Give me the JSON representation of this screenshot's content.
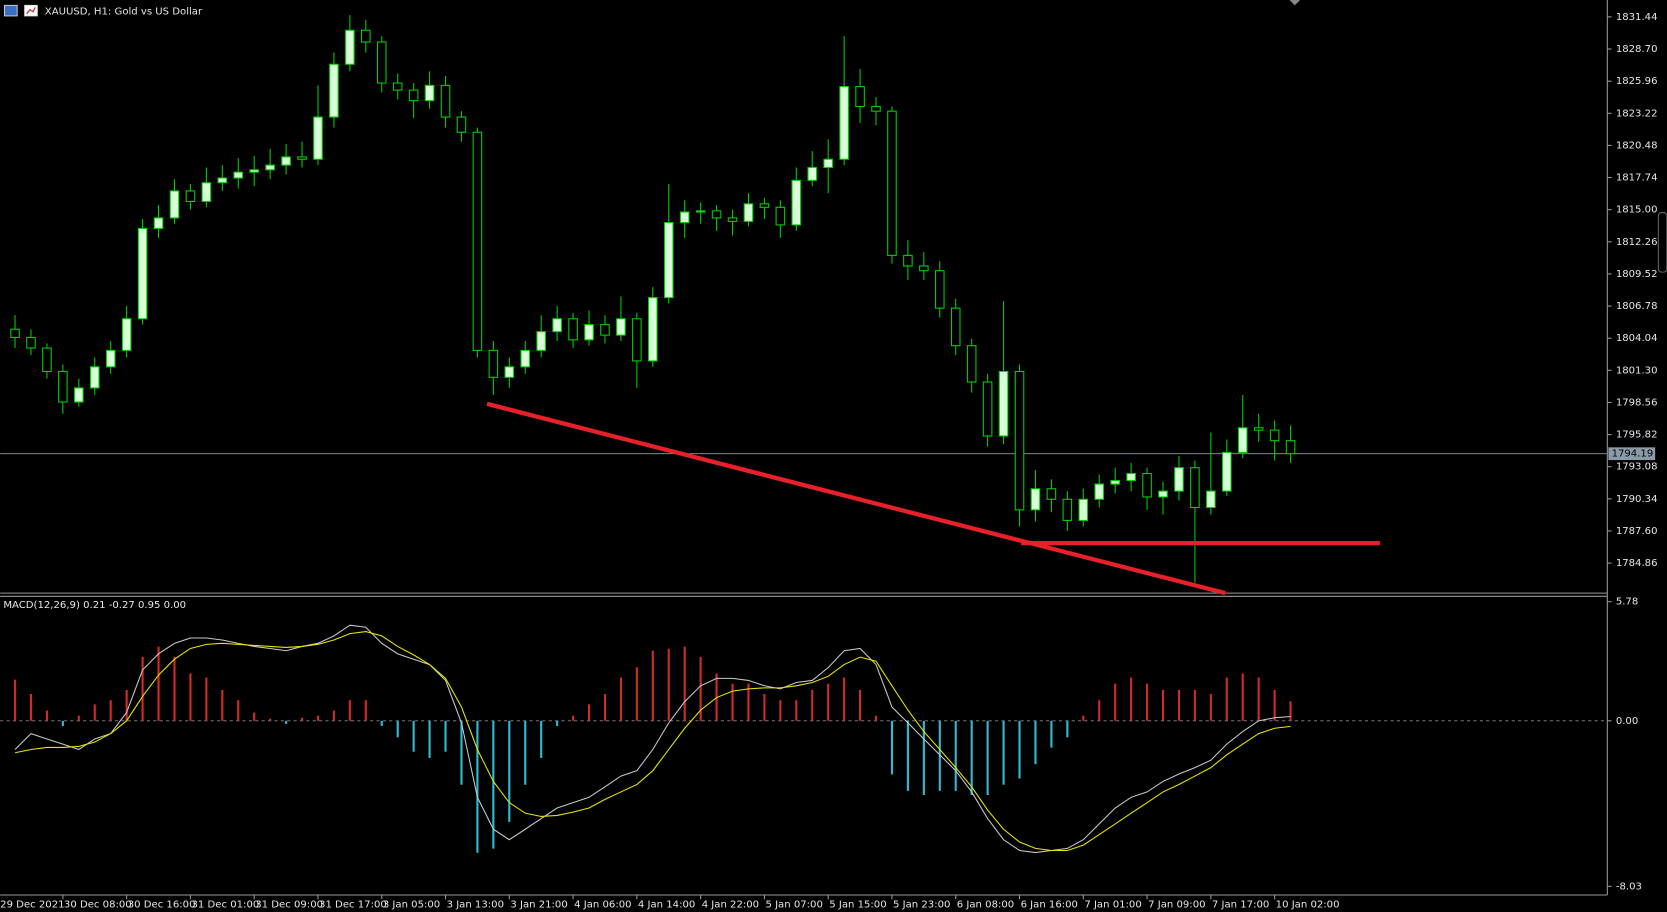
{
  "chart_data": [
    {
      "type": "candlestick",
      "title": "XAUUSD, H1:  Gold vs US Dollar",
      "categories": [
        "29 Dec 2021",
        null,
        null,
        null,
        "30 Dec 08:00",
        null,
        null,
        null,
        "30 Dec 16:00",
        null,
        null,
        null,
        "31 Dec 01:00",
        null,
        null,
        null,
        "31 Dec 09:00",
        null,
        null,
        null,
        "31 Dec 17:00",
        null,
        null,
        null,
        "3 Jan 05:00",
        null,
        null,
        null,
        "3 Jan 13:00",
        null,
        null,
        null,
        "3 Jan 21:00",
        null,
        null,
        null,
        "4 Jan 06:00",
        null,
        null,
        null,
        "4 Jan 14:00",
        null,
        null,
        null,
        "4 Jan 22:00",
        null,
        null,
        null,
        "5 Jan 07:00",
        null,
        null,
        null,
        "5 Jan 15:00",
        null,
        null,
        null,
        "5 Jan 23:00",
        null,
        null,
        null,
        "6 Jan 08:00",
        null,
        null,
        null,
        "6 Jan 16:00",
        null,
        null,
        null,
        "7 Jan 01:00",
        null,
        null,
        null,
        "7 Jan 09:00",
        null,
        null,
        null,
        "7 Jan 17:00",
        null,
        null,
        null,
        "10 Jan 02:00"
      ],
      "candles": [
        [
          1804.8,
          1806.0,
          1803.2,
          1804.1
        ],
        [
          1804.1,
          1804.8,
          1802.6,
          1803.2
        ],
        [
          1803.2,
          1803.6,
          1800.6,
          1801.2
        ],
        [
          1801.2,
          1801.8,
          1797.6,
          1798.6
        ],
        [
          1798.6,
          1800.6,
          1798.2,
          1799.8
        ],
        [
          1799.8,
          1802.4,
          1799.2,
          1801.6
        ],
        [
          1801.6,
          1803.8,
          1801.0,
          1803.0
        ],
        [
          1803.0,
          1806.8,
          1802.4,
          1805.7
        ],
        [
          1805.7,
          1814.2,
          1805.2,
          1813.4
        ],
        [
          1813.4,
          1815.4,
          1812.6,
          1814.3
        ],
        [
          1814.3,
          1817.6,
          1813.8,
          1816.6
        ],
        [
          1816.6,
          1817.2,
          1815.0,
          1815.7
        ],
        [
          1815.7,
          1818.6,
          1815.2,
          1817.3
        ],
        [
          1817.3,
          1818.8,
          1816.6,
          1817.7
        ],
        [
          1817.7,
          1819.4,
          1816.8,
          1818.2
        ],
        [
          1818.2,
          1819.6,
          1817.0,
          1818.4
        ],
        [
          1818.4,
          1820.2,
          1817.6,
          1818.8
        ],
        [
          1818.8,
          1820.6,
          1818.0,
          1819.5
        ],
        [
          1819.5,
          1820.8,
          1818.6,
          1819.3
        ],
        [
          1819.3,
          1825.6,
          1818.8,
          1822.9
        ],
        [
          1822.9,
          1828.4,
          1822.0,
          1827.4
        ],
        [
          1827.4,
          1831.6,
          1826.8,
          1830.3
        ],
        [
          1830.3,
          1831.2,
          1828.4,
          1829.3
        ],
        [
          1829.3,
          1829.8,
          1825.0,
          1825.8
        ],
        [
          1825.8,
          1826.6,
          1824.4,
          1825.2
        ],
        [
          1825.2,
          1825.8,
          1822.8,
          1824.3
        ],
        [
          1824.3,
          1826.8,
          1823.6,
          1825.6
        ],
        [
          1825.6,
          1826.4,
          1822.0,
          1822.9
        ],
        [
          1822.9,
          1823.4,
          1820.8,
          1821.6
        ],
        [
          1821.6,
          1822.0,
          1802.4,
          1803.0
        ],
        [
          1803.0,
          1803.8,
          1799.2,
          1800.7
        ],
        [
          1800.7,
          1802.4,
          1799.8,
          1801.6
        ],
        [
          1801.6,
          1803.8,
          1801.0,
          1803.0
        ],
        [
          1803.0,
          1806.0,
          1802.4,
          1804.6
        ],
        [
          1804.6,
          1806.8,
          1803.8,
          1805.7
        ],
        [
          1805.7,
          1806.2,
          1803.2,
          1803.9
        ],
        [
          1803.9,
          1806.4,
          1803.4,
          1805.2
        ],
        [
          1805.2,
          1806.0,
          1803.6,
          1804.3
        ],
        [
          1804.3,
          1807.6,
          1803.8,
          1805.7
        ],
        [
          1805.7,
          1806.2,
          1799.8,
          1802.1
        ],
        [
          1802.1,
          1808.4,
          1801.6,
          1807.5
        ],
        [
          1807.5,
          1817.2,
          1807.0,
          1813.9
        ],
        [
          1813.9,
          1815.8,
          1812.6,
          1814.8
        ],
        [
          1814.8,
          1815.6,
          1813.8,
          1814.9
        ],
        [
          1814.9,
          1815.4,
          1813.2,
          1814.3
        ],
        [
          1814.3,
          1815.0,
          1812.8,
          1814.0
        ],
        [
          1814.0,
          1816.4,
          1813.6,
          1815.5
        ],
        [
          1815.5,
          1816.0,
          1814.2,
          1815.2
        ],
        [
          1815.2,
          1815.8,
          1812.6,
          1813.7
        ],
        [
          1813.7,
          1818.6,
          1813.2,
          1817.5
        ],
        [
          1817.5,
          1820.0,
          1817.0,
          1818.6
        ],
        [
          1818.6,
          1821.0,
          1816.4,
          1819.3
        ],
        [
          1819.3,
          1829.8,
          1818.8,
          1825.5
        ],
        [
          1825.5,
          1827.0,
          1822.4,
          1823.8
        ],
        [
          1823.8,
          1824.6,
          1822.2,
          1823.4
        ],
        [
          1823.4,
          1823.8,
          1810.4,
          1811.1
        ],
        [
          1811.1,
          1812.4,
          1809.0,
          1810.2
        ],
        [
          1810.2,
          1811.4,
          1809.0,
          1809.8
        ],
        [
          1809.8,
          1810.6,
          1805.8,
          1806.6
        ],
        [
          1806.6,
          1807.4,
          1802.6,
          1803.4
        ],
        [
          1803.4,
          1804.0,
          1799.4,
          1800.3
        ],
        [
          1800.3,
          1801.0,
          1794.8,
          1795.7
        ],
        [
          1795.7,
          1807.2,
          1795.0,
          1801.2
        ],
        [
          1801.2,
          1801.8,
          1788.0,
          1789.4
        ],
        [
          1789.4,
          1792.8,
          1788.4,
          1791.2
        ],
        [
          1791.2,
          1792.0,
          1789.2,
          1790.3
        ],
        [
          1790.3,
          1791.0,
          1787.6,
          1788.5
        ],
        [
          1788.5,
          1791.2,
          1788.0,
          1790.3
        ],
        [
          1790.3,
          1792.4,
          1789.6,
          1791.6
        ],
        [
          1791.6,
          1793.0,
          1790.8,
          1791.9
        ],
        [
          1791.9,
          1793.4,
          1791.0,
          1792.5
        ],
        [
          1792.5,
          1793.0,
          1789.4,
          1790.5
        ],
        [
          1790.5,
          1791.8,
          1789.0,
          1791.0
        ],
        [
          1791.0,
          1794.0,
          1790.2,
          1793.0
        ],
        [
          1793.0,
          1793.6,
          1783.2,
          1789.6
        ],
        [
          1789.6,
          1796.0,
          1789.0,
          1791.0
        ],
        [
          1791.0,
          1795.4,
          1790.6,
          1794.3
        ],
        [
          1794.3,
          1799.2,
          1793.8,
          1796.4
        ],
        [
          1796.4,
          1797.6,
          1795.2,
          1796.2
        ],
        [
          1796.2,
          1797.0,
          1793.6,
          1795.3
        ],
        [
          1795.3,
          1796.6,
          1793.4,
          1794.19
        ]
      ],
      "up_color": "#d8ffd8",
      "down_color": "#000000",
      "wick_color": "#00d000",
      "ylim": [
        1782.3,
        1832.7
      ],
      "yticks": [
        1831.44,
        {
          "value": 1828.7,
          "label": "1828.70"
        },
        1825.96,
        1823.22,
        1820.48,
        1817.74,
        {
          "value": 1815,
          "label": "1815.00"
        },
        1812.26,
        1809.52,
        1806.78,
        1804.04,
        {
          "value": 1801.3,
          "label": "1801.30"
        },
        1798.56,
        1795.82,
        1793.08,
        1790.34,
        {
          "value": 1787.6,
          "label": "1787.60"
        },
        1784.86
      ],
      "current_price": 1794.19,
      "drawings": [
        {
          "color": "#e8202a",
          "x": [
            29.6,
            75.9
          ],
          "y": [
            1798.44,
            1782.3
          ]
        },
        {
          "color": "#e8202a",
          "x": [
            63.1,
            85.6
          ],
          "y": [
            1786.56,
            1786.56
          ]
        }
      ]
    },
    {
      "type": "macd",
      "title": "MACD(12,26,9) 0.21 -0.27 0.95 0.00",
      "histogram": {
        "up_color": "#d42a2a",
        "down_color": "#35b8d0",
        "values": [
          2.0,
          1.3,
          0.5,
          -0.25,
          0.25,
          0.8,
          1.0,
          1.5,
          3.1,
          3.6,
          3.1,
          2.3,
          2.1,
          1.5,
          1.0,
          0.4,
          0.1,
          -0.15,
          0.15,
          0.25,
          0.5,
          1.0,
          1.0,
          -0.25,
          -0.8,
          -1.5,
          -1.8,
          -1.5,
          -3.1,
          -6.4,
          -6.2,
          -4.9,
          -3.1,
          -1.8,
          -0.25,
          0.25,
          0.8,
          1.3,
          2.1,
          2.6,
          3.4,
          3.5,
          3.6,
          3.1,
          2.3,
          1.8,
          1.8,
          1.3,
          1.0,
          1.0,
          1.5,
          1.8,
          2.1,
          1.5,
          0.25,
          -2.6,
          -3.4,
          -3.6,
          -3.4,
          -3.4,
          -3.6,
          -3.6,
          -3.1,
          -2.8,
          -2.1,
          -1.3,
          -0.8,
          0.25,
          1.0,
          1.8,
          2.1,
          1.8,
          1.5,
          1.5,
          1.5,
          1.3,
          2.1,
          2.3,
          2.1,
          1.5,
          0.95
        ]
      },
      "series": [
        {
          "color": "#c8c8c8",
          "values": [
            -1.39,
            -0.62,
            -0.88,
            -1.13,
            -1.39,
            -0.88,
            -0.62,
            0.41,
            2.47,
            3.25,
            3.76,
            4.02,
            4.02,
            3.92,
            3.76,
            3.61,
            3.51,
            3.4,
            3.61,
            3.76,
            4.12,
            4.64,
            4.54,
            3.76,
            3.25,
            2.99,
            2.73,
            1.96,
            -0.1,
            -3.71,
            -5.26,
            -5.77,
            -5.26,
            -4.74,
            -4.23,
            -3.97,
            -3.71,
            -3.2,
            -2.68,
            -2.42,
            -1.39,
            -0.1,
            0.93,
            1.7,
            2.06,
            2.06,
            1.96,
            1.7,
            1.55,
            1.86,
            1.96,
            2.58,
            3.4,
            3.51,
            2.73,
            0.67,
            -0.1,
            -0.88,
            -1.65,
            -2.42,
            -3.45,
            -4.74,
            -5.77,
            -6.29,
            -6.39,
            -6.29,
            -6.19,
            -5.77,
            -5.0,
            -4.23,
            -3.71,
            -3.45,
            -2.94,
            -2.58,
            -2.27,
            -1.91,
            -1.13,
            -0.52,
            0.0,
            0.15,
            0.21
          ]
        },
        {
          "color": "#e6e600",
          "values": [
            -1.55,
            -1.39,
            -1.29,
            -1.29,
            -1.24,
            -1.03,
            -0.62,
            0.0,
            1.19,
            2.22,
            2.99,
            3.51,
            3.71,
            3.76,
            3.71,
            3.66,
            3.61,
            3.56,
            3.61,
            3.71,
            3.92,
            4.23,
            4.33,
            4.12,
            3.61,
            3.2,
            2.73,
            2.06,
            0.67,
            -1.39,
            -2.94,
            -3.97,
            -4.48,
            -4.64,
            -4.59,
            -4.43,
            -4.23,
            -3.81,
            -3.45,
            -3.09,
            -2.42,
            -1.39,
            -0.36,
            0.52,
            1.13,
            1.44,
            1.55,
            1.6,
            1.6,
            1.7,
            1.86,
            2.16,
            2.73,
            3.09,
            2.89,
            1.7,
            0.52,
            -0.52,
            -1.39,
            -2.27,
            -3.2,
            -4.33,
            -5.26,
            -5.88,
            -6.19,
            -6.29,
            -6.29,
            -6.03,
            -5.52,
            -5.0,
            -4.48,
            -3.97,
            -3.45,
            -3.09,
            -2.68,
            -2.27,
            -1.65,
            -1.13,
            -0.62,
            -0.36,
            -0.27
          ]
        }
      ],
      "ylim": [
        -8.45,
        5.99
      ],
      "yticks": [
        5.78,
        {
          "value": 0,
          "label": "0.00"
        },
        -8.03
      ]
    }
  ]
}
